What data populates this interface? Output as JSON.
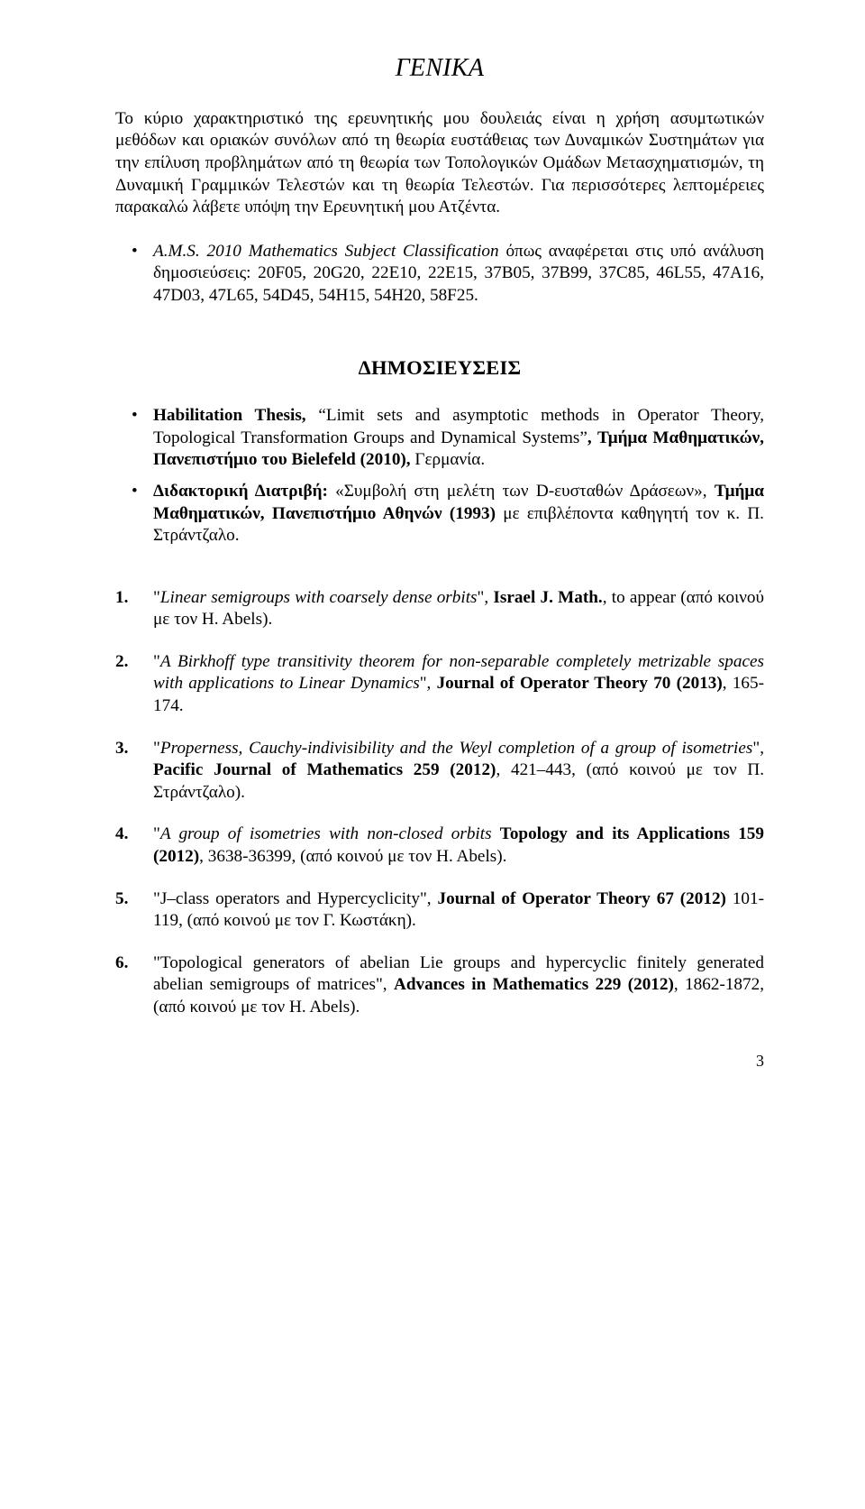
{
  "heading": "ΓΕΝΙΚΑ",
  "intro_para": "Το κύριο χαρακτηριστικό της ερευνητικής μου δουλειάς είναι η χρήση ασυμτωτικών μεθόδων και οριακών συνόλων από τη θεωρία ευστάθειας των Δυναμικών Συστημάτων για την επίλυση προβλημάτων από τη θεωρία των Τοπολογικών Ομάδων Μετασχηματισμών, τη Δυναμική Γραμμικών Τελεστών και τη θεωρία Τελεστών. Για περισσότερες λεπτομέρειες παρακαλώ λάβετε υπόψη την Ερευνητική μου Ατζέντα.",
  "ams_item": {
    "prefix_italic": "A.M.S. 2010 Mathematics Subject Classification",
    "rest": " όπως αναφέρεται στις υπό ανάλυση δημοσιεύσεις: 20F05, 20G20, 22E10, 22E15, 37B05, 37B99, 37C85, 46L55, 47A16, 47D03, 47L65, 54D45, 54H15, 54H20, 58F25."
  },
  "pubs_heading": "ΔΗΜΟΣΙΕΥΣΕΙΣ",
  "habil": {
    "before_ldquo": "Habilitation Thesis, ",
    "title": "Limit sets and asymptotic methods in Operator Theory, Topological Transformation Groups and Dynamical Systems",
    "tail_bold": ", Τμήμα Μαθηματικών, Πανεπιστήμιο του Bielefeld (2010),",
    "tail_plain": " Γερμανία."
  },
  "phd": {
    "lead_bold": "Διδακτορική Διατριβή:",
    "mid_plain": " «Συμβολή στη μελέτη των D-ευσταθών Δράσεων», ",
    "mid_bold": "Τμήμα Μαθηματικών, Πανεπιστήμιο Αθηνών (1993)",
    "tail_plain": " με επιβλέποντα καθηγητή τον κ. Π. Στράντζαλο."
  },
  "items": [
    {
      "n": "1.",
      "lead": "   ",
      "ldq": "\"",
      "ital": "Linear semigroups with coarsely dense orbits",
      "rdq": "\", ",
      "bold": "Israel J. Math.",
      "tail": ", to appear (από κοινού με τον H. Abels)."
    },
    {
      "n": "2.",
      "lead": "",
      "ldq": "\"",
      "ital": "A Birkhoff type transitivity theorem for non-separable completely metrizable spaces with applications to Linear Dynamics",
      "rdq": "\", ",
      "bold": "Journal of Operator Theory 70 (2013)",
      "tail": ", 165-174."
    },
    {
      "n": "3.",
      "lead": "",
      "ldq": "\"",
      "ital": "Properness, Cauchy-indivisibility and the Weyl completion of a group of isometries",
      "rdq": "\", ",
      "bold": "Pacific Journal of Mathematics 259 (2012)",
      "tail": ", 421–443, (από κοινού με τον Π. Στράντζαλο)."
    },
    {
      "n": "4.",
      "lead": "",
      "ldq": "\"",
      "ital": "A group of isometries with non-closed orbits",
      "rdq": " ",
      "bold": "Topology and its Applications 159 (2012)",
      "tail": ", 3638-36399, (από κοινού με τον H. Abels)."
    },
    {
      "n": "5.",
      "lead": "",
      "ldq": "\"",
      "ital": "",
      "rdq": "",
      "plain_lead": "J–class operators and Hypercyclicity\", ",
      "bold": "Journal of Operator Theory 67 (2012)",
      "tail": " 101-119, (από κοινού με τον Γ. Κωστάκη)."
    },
    {
      "n": "6.",
      "lead": "",
      "ldq": "\"",
      "ital": "",
      "rdq": "",
      "plain_lead": "Topological generators of abelian Lie groups and hypercyclic finitely generated abelian semigroups of matrices\", ",
      "bold": "Advances in Mathematics 229 (2012)",
      "tail": ", 1862-1872, (από κοινού με τον H. Abels)."
    }
  ],
  "pagenum": "3",
  "colors": {
    "text": "#000000",
    "bg": "#ffffff"
  },
  "fonts": {
    "family": "Times New Roman",
    "body_pt": 14,
    "h1_pt": 21,
    "h2_pt": 17
  }
}
